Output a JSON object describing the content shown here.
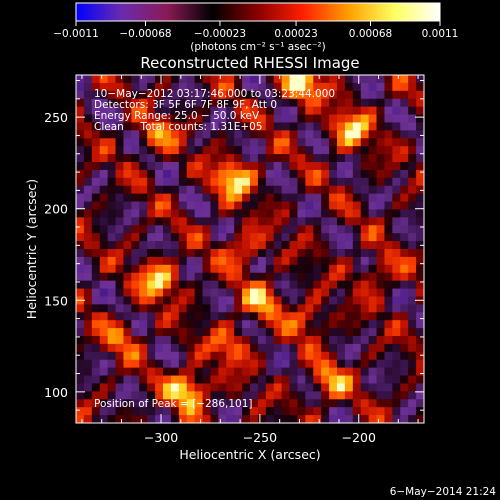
{
  "colorbar": {
    "ticks": [
      {
        "value": -0.0011,
        "label": "−0.0011"
      },
      {
        "value": -0.00068,
        "label": "−0.00068"
      },
      {
        "value": -0.00023,
        "label": "−0.00023"
      },
      {
        "value": 0.00023,
        "label": "0.00023"
      },
      {
        "value": 0.00068,
        "label": "0.00068"
      },
      {
        "value": 0.0011,
        "label": "0.0011"
      }
    ],
    "range": [
      -0.0011,
      0.0011
    ],
    "unit_label": "(photons cm⁻² s⁻¹ asec⁻²)",
    "colors": [
      "#0000ff",
      "#6a2cae",
      "#8a1a55",
      "#000000",
      "#8b0000",
      "#ff2000",
      "#ffa000",
      "#ffff60",
      "#ffffff"
    ]
  },
  "chart_data": {
    "type": "heatmap",
    "title": "Reconstructed RHESSI Image",
    "xlabel": "Heliocentric X (arcsec)",
    "ylabel": "Heliocentric Y (arcsec)",
    "xlim": [
      -343,
      -167
    ],
    "ylim": [
      83,
      273
    ],
    "x_ticks": [
      {
        "value": -300,
        "label": "−300"
      },
      {
        "value": -250,
        "label": "−250"
      },
      {
        "value": -200,
        "label": "−200"
      }
    ],
    "y_ticks": [
      {
        "value": 100,
        "label": "100"
      },
      {
        "value": 150,
        "label": "150"
      },
      {
        "value": 200,
        "label": "200"
      },
      {
        "value": 250,
        "label": "250"
      }
    ],
    "peak": {
      "x": -286,
      "y": 101
    },
    "hot_spots": [
      {
        "x": -286,
        "y": 101,
        "value": 0.0011
      },
      {
        "x": -229,
        "y": 268,
        "value": 0.0011
      },
      {
        "x": -263,
        "y": 216,
        "value": 0.001
      },
      {
        "x": -301,
        "y": 161,
        "value": 0.00095
      },
      {
        "x": -204,
        "y": 243,
        "value": 0.0009
      },
      {
        "x": -249,
        "y": 150,
        "value": 0.0007
      },
      {
        "x": -215,
        "y": 105,
        "value": 0.0007
      },
      {
        "x": -302,
        "y": 240,
        "value": 0.0006
      },
      {
        "x": -258,
        "y": 178,
        "value": 0.0006
      },
      {
        "x": -225,
        "y": 140,
        "value": 0.00055
      },
      {
        "x": -190,
        "y": 165,
        "value": 0.0005
      },
      {
        "x": -320,
        "y": 130,
        "value": 0.0005
      },
      {
        "x": -265,
        "y": 125,
        "value": 0.0006
      }
    ],
    "info_lines": [
      "10−May−2012 03:17:46.000 to 03:23:44.000",
      "Detectors: 3F 5F 6F 7F 8F 9F, Att 0",
      "Energy Range: 25.0 − 50.0 keV",
      "Clean     Total counts: 1.31E+05"
    ],
    "peak_label": "Position of Peak = [−286,101]"
  },
  "footer": {
    "timestamp": "6−May−2014 21:24"
  }
}
